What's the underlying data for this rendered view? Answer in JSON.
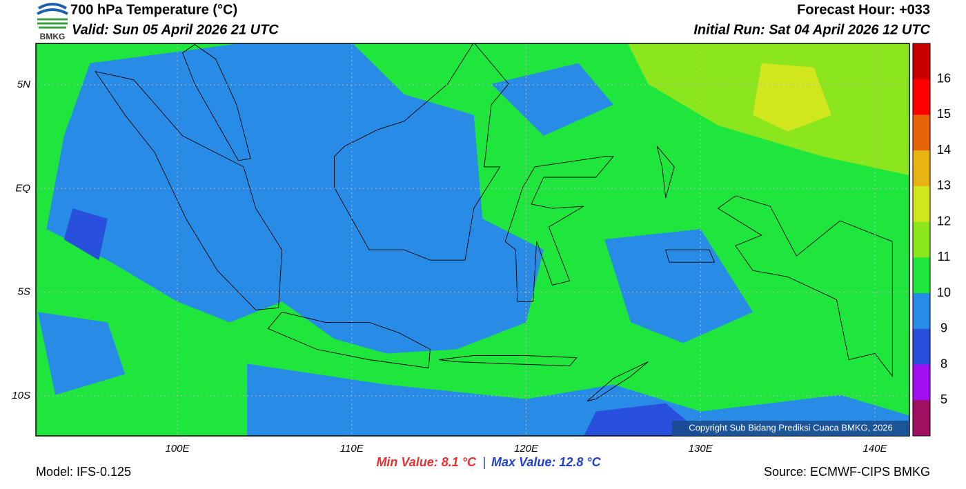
{
  "header": {
    "title": "700 hPa Temperature (°C)",
    "valid": "Valid: Sun 05 April 2026 21 UTC",
    "forecast_hour": "Forecast Hour: +033",
    "initial_run": "Initial Run: Sat 04 April 2026 12 UTC",
    "logo": "BMKG"
  },
  "map": {
    "lat_labels": [
      "5N",
      "EQ",
      "5S",
      "10S"
    ],
    "lon_labels": [
      "100E",
      "110E",
      "120E",
      "130E",
      "140E"
    ],
    "copyright": "Copyright Sub Bidang Prediksi Cuaca BMKG, 2026"
  },
  "colorbar": {
    "labels": [
      "16",
      "15",
      "14",
      "13",
      "12",
      "11",
      "10",
      "9",
      "8",
      "5"
    ],
    "colors": [
      "#c80000",
      "#ff0000",
      "#e8640a",
      "#e8b414",
      "#d2e61e",
      "#8ce61e",
      "#1ee63c",
      "#288ce6",
      "#2850dc",
      "#a010f0",
      "#a01060"
    ]
  },
  "footer": {
    "min_value": "Min Value: 8.1 °C",
    "separator": "|",
    "max_value": "Max Value: 12.8 °C",
    "model": "Model: IFS-0.125",
    "source": "Source: ECMWF-CIPS BMKG"
  }
}
